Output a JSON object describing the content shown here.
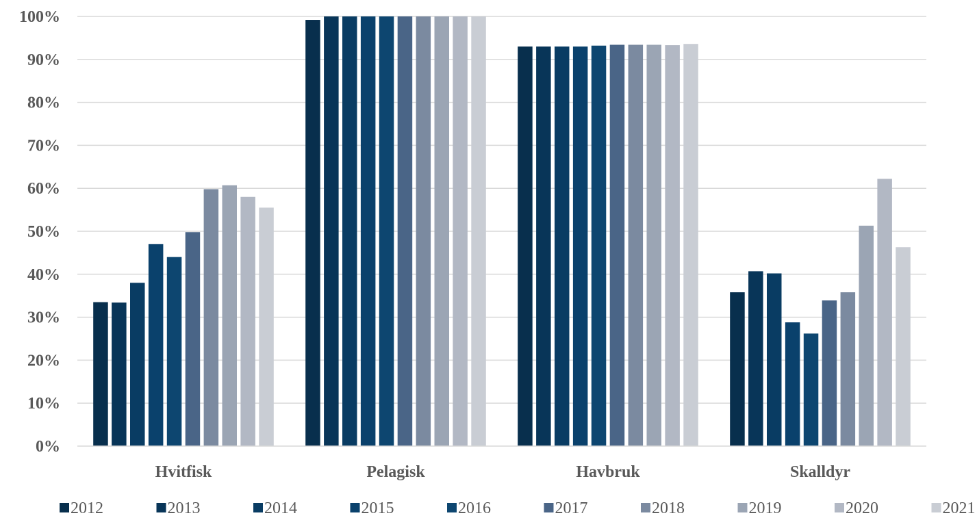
{
  "chart_data": {
    "type": "bar",
    "categories": [
      "Hvitfisk",
      "Pelagisk",
      "Havbruk",
      "Skalldyr"
    ],
    "series": [
      {
        "name": "2012",
        "color": "#082f4d",
        "values": [
          33.5,
          99.2,
          93.0,
          35.8
        ]
      },
      {
        "name": "2013",
        "color": "#083558",
        "values": [
          33.4,
          100,
          93.0,
          40.7
        ]
      },
      {
        "name": "2014",
        "color": "#093c63",
        "values": [
          38.0,
          100,
          93.0,
          40.2
        ]
      },
      {
        "name": "2015",
        "color": "#0a416c",
        "values": [
          47.0,
          100,
          93.0,
          28.8
        ]
      },
      {
        "name": "2016",
        "color": "#0d4670",
        "values": [
          44.0,
          100,
          93.2,
          26.2
        ]
      },
      {
        "name": "2017",
        "color": "#4a6587",
        "values": [
          49.8,
          100,
          93.4,
          33.9
        ]
      },
      {
        "name": "2018",
        "color": "#7b8aa0",
        "values": [
          59.8,
          100,
          93.4,
          35.8
        ]
      },
      {
        "name": "2019",
        "color": "#9ba5b4",
        "values": [
          60.7,
          100,
          93.4,
          51.3
        ]
      },
      {
        "name": "2020",
        "color": "#b2b8c4",
        "values": [
          58.0,
          100,
          93.3,
          62.2
        ]
      },
      {
        "name": "2021",
        "color": "#c9cdd4",
        "values": [
          55.5,
          100,
          93.6,
          46.3
        ]
      }
    ],
    "ylim": [
      0,
      100
    ],
    "yticks": [
      {
        "value": 0,
        "label": "0%"
      },
      {
        "value": 10,
        "label": "10%"
      },
      {
        "value": 20,
        "label": "20%"
      },
      {
        "value": 30,
        "label": "30%"
      },
      {
        "value": 40,
        "label": "40%"
      },
      {
        "value": 50,
        "label": "50%"
      },
      {
        "value": 60,
        "label": "60%"
      },
      {
        "value": 70,
        "label": "70%"
      },
      {
        "value": 80,
        "label": "80%"
      },
      {
        "value": 90,
        "label": "90%"
      },
      {
        "value": 100,
        "label": "100%"
      }
    ],
    "grid": true,
    "legend": "bottom",
    "title": "",
    "xlabel": "",
    "ylabel": ""
  }
}
